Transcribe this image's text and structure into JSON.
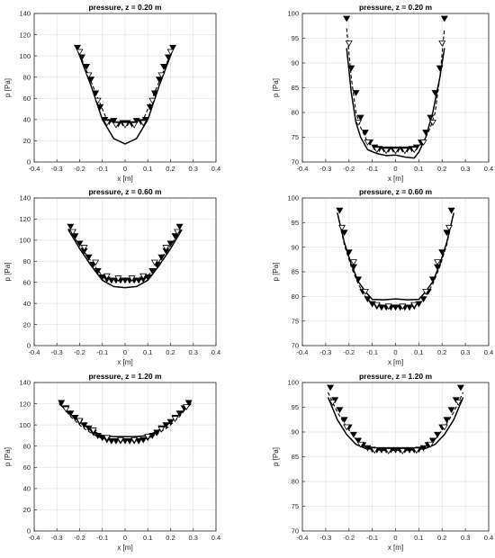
{
  "chart_data": [
    {
      "type": "line",
      "title": "pressure, z = 0.20 m",
      "xlabel": "x [m]",
      "ylabel": "p [Pa]",
      "xlim": [
        -0.4,
        0.4
      ],
      "ylim": [
        0,
        140
      ],
      "xticks": [
        "-0.4",
        "-0.3",
        "-0.2",
        "-0.1",
        "0",
        "0.1",
        "0.2",
        "0.3",
        "0.4"
      ],
      "yticks": [
        "0",
        "20",
        "40",
        "60",
        "80",
        "100",
        "120",
        "140"
      ],
      "grid": true,
      "series": [
        {
          "style": "solid",
          "x": [
            -0.21,
            -0.15,
            -0.1,
            -0.05,
            0,
            0.05,
            0.1,
            0.15,
            0.21
          ],
          "y": [
            106,
            72,
            40,
            22,
            17,
            22,
            40,
            72,
            106
          ]
        },
        {
          "style": "dashed",
          "x": [
            -0.21,
            -0.15,
            -0.1,
            -0.08,
            -0.05,
            0,
            0.05,
            0.08,
            0.1,
            0.15,
            0.21
          ],
          "y": [
            107,
            76,
            50,
            40,
            37,
            37,
            37,
            40,
            50,
            76,
            107
          ]
        },
        {
          "style": "markers-filled",
          "x": [
            -0.21,
            -0.19,
            -0.17,
            -0.15,
            -0.13,
            -0.11,
            -0.09,
            -0.07,
            -0.05,
            -0.03,
            -0.01,
            0.01,
            0.03,
            0.05,
            0.07,
            0.09,
            0.11,
            0.13,
            0.15,
            0.17,
            0.19,
            0.21
          ],
          "y": [
            108,
            99,
            90,
            78,
            65,
            52,
            40,
            38,
            39,
            36,
            37,
            37,
            36,
            39,
            38,
            40,
            52,
            65,
            78,
            90,
            99,
            108
          ]
        },
        {
          "style": "markers-open",
          "x": [
            -0.2,
            -0.16,
            -0.12,
            -0.08,
            -0.04,
            0,
            0.04,
            0.08,
            0.12,
            0.16,
            0.2
          ],
          "y": [
            104,
            82,
            58,
            37,
            35,
            35,
            35,
            37,
            58,
            82,
            104
          ]
        }
      ]
    },
    {
      "type": "line",
      "title": "pressure, z = 0.20 m",
      "xlabel": "x [m]",
      "ylabel": "p [Pa]",
      "xlim": [
        -0.4,
        0.4
      ],
      "ylim": [
        70,
        100
      ],
      "xticks": [
        "-0.4",
        "-0.3",
        "-0.2",
        "-0.1",
        "0",
        "0.1",
        "0.2",
        "0.3",
        "0.4"
      ],
      "yticks": [
        "70",
        "75",
        "80",
        "85",
        "90",
        "95",
        "100"
      ],
      "grid": true,
      "series": [
        {
          "style": "solid",
          "x": [
            -0.21,
            -0.19,
            -0.17,
            -0.15,
            -0.12,
            -0.08,
            -0.04,
            0,
            0.04,
            0.08,
            0.1,
            0.13,
            0.16,
            0.19,
            0.21
          ],
          "y": [
            93,
            84,
            78,
            75,
            72.5,
            71.7,
            71.3,
            71.4,
            71,
            70.8,
            72,
            75,
            80,
            87,
            93
          ]
        },
        {
          "style": "dashed",
          "x": [
            -0.21,
            -0.19,
            -0.17,
            -0.15,
            -0.12,
            -0.09,
            -0.05,
            0,
            0.05,
            0.09,
            0.12,
            0.15,
            0.17,
            0.19,
            0.21
          ],
          "y": [
            97,
            87,
            80,
            77,
            74,
            73,
            72.7,
            72.7,
            72.7,
            73,
            74,
            77,
            80,
            87,
            97
          ]
        },
        {
          "style": "markers-filled",
          "x": [
            -0.21,
            -0.19,
            -0.17,
            -0.15,
            -0.13,
            -0.11,
            -0.09,
            -0.07,
            -0.05,
            -0.03,
            -0.01,
            0.01,
            0.03,
            0.05,
            0.07,
            0.09,
            0.11,
            0.13,
            0.15,
            0.17,
            0.19,
            0.21
          ],
          "y": [
            99,
            89,
            84,
            79,
            76,
            74,
            73,
            72.7,
            72.6,
            72.6,
            72.6,
            72.6,
            72.6,
            72.6,
            72.7,
            73,
            74,
            76,
            79,
            84,
            89,
            99
          ]
        },
        {
          "style": "markers-open",
          "x": [
            -0.2,
            -0.16,
            -0.12,
            -0.08,
            -0.04,
            0,
            0.04,
            0.08,
            0.12,
            0.16,
            0.2
          ],
          "y": [
            94,
            78,
            74,
            72.5,
            72.3,
            72.3,
            72.3,
            72.5,
            74,
            78,
            94
          ]
        }
      ]
    },
    {
      "type": "line",
      "title": "pressure, z = 0.60 m",
      "xlabel": "x [m]",
      "ylabel": "p [Pa]",
      "xlim": [
        -0.4,
        0.4
      ],
      "ylim": [
        0,
        140
      ],
      "xticks": [
        "-0.4",
        "-0.3",
        "-0.2",
        "-0.1",
        "0",
        "0.1",
        "0.2",
        "0.3",
        "0.4"
      ],
      "yticks": [
        "0",
        "20",
        "40",
        "60",
        "80",
        "100",
        "120",
        "140"
      ],
      "grid": true,
      "series": [
        {
          "style": "solid",
          "x": [
            -0.25,
            -0.2,
            -0.15,
            -0.1,
            -0.05,
            0,
            0.05,
            0.1,
            0.15,
            0.2,
            0.25
          ],
          "y": [
            110,
            92,
            76,
            62,
            56,
            55,
            56,
            62,
            76,
            92,
            110
          ]
        },
        {
          "style": "dashed",
          "x": [
            -0.25,
            -0.2,
            -0.15,
            -0.1,
            -0.05,
            0,
            0.05,
            0.1,
            0.15,
            0.2,
            0.25
          ],
          "y": [
            111,
            95,
            80,
            66,
            63,
            63,
            63,
            66,
            80,
            95,
            111
          ]
        },
        {
          "style": "markers-filled",
          "x": [
            -0.24,
            -0.22,
            -0.2,
            -0.18,
            -0.16,
            -0.14,
            -0.12,
            -0.1,
            -0.08,
            -0.06,
            -0.04,
            -0.02,
            0,
            0.02,
            0.04,
            0.06,
            0.08,
            0.1,
            0.12,
            0.14,
            0.16,
            0.18,
            0.2,
            0.22,
            0.24
          ],
          "y": [
            113,
            104,
            97,
            90,
            84,
            77,
            71,
            65,
            63,
            62,
            62,
            62,
            62,
            62,
            62,
            62,
            63,
            65,
            71,
            77,
            84,
            90,
            97,
            104,
            113
          ]
        },
        {
          "style": "markers-open",
          "x": [
            -0.23,
            -0.18,
            -0.13,
            -0.08,
            -0.03,
            0.03,
            0.08,
            0.13,
            0.18,
            0.23
          ],
          "y": [
            108,
            93,
            79,
            66,
            64,
            64,
            66,
            79,
            93,
            108
          ]
        }
      ]
    },
    {
      "type": "line",
      "title": "pressure, z = 0.60 m",
      "xlabel": "x [m]",
      "ylabel": "p [Pa]",
      "xlim": [
        -0.4,
        0.4
      ],
      "ylim": [
        70,
        100
      ],
      "xticks": [
        "-0.4",
        "-0.3",
        "-0.2",
        "-0.1",
        "0",
        "0.1",
        "0.2",
        "0.3",
        "0.4"
      ],
      "yticks": [
        "70",
        "75",
        "80",
        "85",
        "90",
        "95",
        "100"
      ],
      "grid": true,
      "series": [
        {
          "style": "solid",
          "x": [
            -0.25,
            -0.22,
            -0.19,
            -0.16,
            -0.13,
            -0.1,
            -0.05,
            0,
            0.05,
            0.1,
            0.13,
            0.16,
            0.19,
            0.22,
            0.25
          ],
          "y": [
            97,
            91,
            86.5,
            83,
            81,
            79.4,
            79.3,
            79.5,
            79.3,
            79.4,
            81,
            83,
            86.5,
            91,
            97
          ]
        },
        {
          "style": "dashed",
          "x": [
            -0.25,
            -0.22,
            -0.19,
            -0.16,
            -0.13,
            -0.1,
            -0.05,
            0,
            0.05,
            0.1,
            0.13,
            0.16,
            0.19,
            0.22,
            0.25
          ],
          "y": [
            97,
            90.5,
            86,
            82.5,
            80,
            78.5,
            78,
            78,
            78,
            78.5,
            80,
            82.5,
            86,
            90.5,
            97
          ]
        },
        {
          "style": "markers-filled",
          "x": [
            -0.24,
            -0.22,
            -0.2,
            -0.18,
            -0.16,
            -0.14,
            -0.12,
            -0.1,
            -0.08,
            -0.06,
            -0.04,
            -0.02,
            0,
            0.02,
            0.04,
            0.06,
            0.08,
            0.1,
            0.12,
            0.14,
            0.16,
            0.18,
            0.2,
            0.22,
            0.24
          ],
          "y": [
            97.5,
            93,
            89,
            86,
            83.5,
            81,
            79.5,
            78.5,
            78,
            77.8,
            77.8,
            77.8,
            77.8,
            77.8,
            77.8,
            77.8,
            78,
            78.5,
            79.5,
            81,
            83.5,
            86,
            89,
            93,
            97.5
          ]
        },
        {
          "style": "markers-open",
          "x": [
            -0.23,
            -0.18,
            -0.13,
            -0.08,
            -0.03,
            0.03,
            0.08,
            0.13,
            0.18,
            0.23
          ],
          "y": [
            94,
            87,
            81,
            78.3,
            78,
            78,
            78.3,
            81,
            87,
            94
          ]
        }
      ]
    },
    {
      "type": "line",
      "title": "pressure, z = 1.20 m",
      "xlabel": "x [m]",
      "ylabel": "p [Pa]",
      "xlim": [
        -0.4,
        0.4
      ],
      "ylim": [
        0,
        140
      ],
      "xticks": [
        "-0.4",
        "-0.3",
        "-0.2",
        "-0.1",
        "0",
        "0.1",
        "0.2",
        "0.3",
        "0.4"
      ],
      "yticks": [
        "0",
        "20",
        "40",
        "60",
        "80",
        "100",
        "120",
        "140"
      ],
      "grid": true,
      "series": [
        {
          "style": "solid",
          "x": [
            -0.29,
            -0.24,
            -0.19,
            -0.14,
            -0.1,
            -0.05,
            0,
            0.05,
            0.1,
            0.14,
            0.19,
            0.24,
            0.29
          ],
          "y": [
            120,
            110,
            101,
            94,
            90,
            89,
            89,
            89,
            90,
            94,
            101,
            110,
            120
          ]
        },
        {
          "style": "dashed",
          "x": [
            -0.29,
            -0.24,
            -0.19,
            -0.14,
            -0.1,
            -0.05,
            0,
            0.05,
            0.1,
            0.14,
            0.19,
            0.24,
            0.29
          ],
          "y": [
            121,
            108,
            98,
            91,
            87,
            86,
            86,
            86,
            87,
            91,
            98,
            108,
            121
          ]
        },
        {
          "style": "markers-filled",
          "x": [
            -0.28,
            -0.26,
            -0.24,
            -0.22,
            -0.2,
            -0.18,
            -0.16,
            -0.14,
            -0.12,
            -0.1,
            -0.08,
            -0.06,
            -0.04,
            -0.02,
            0,
            0.02,
            0.04,
            0.06,
            0.08,
            0.1,
            0.12,
            0.14,
            0.16,
            0.18,
            0.2,
            0.22,
            0.24,
            0.26,
            0.28
          ],
          "y": [
            121,
            116,
            111,
            107,
            103,
            100,
            97,
            93,
            90,
            88,
            86,
            85,
            85,
            85,
            85,
            85,
            85,
            85,
            86,
            88,
            90,
            93,
            97,
            100,
            103,
            107,
            111,
            116,
            121
          ]
        },
        {
          "style": "markers-open",
          "x": [
            -0.26,
            -0.2,
            -0.14,
            -0.08,
            -0.02,
            0.04,
            0.1,
            0.16,
            0.22,
            0.27
          ],
          "y": [
            115,
            104,
            95,
            88,
            86,
            86,
            89,
            96,
            106,
            117
          ]
        }
      ]
    },
    {
      "type": "line",
      "title": "pressure, z = 1.20 m",
      "xlabel": "x [m]",
      "ylabel": "p [Pa]",
      "xlim": [
        -0.4,
        0.4
      ],
      "ylim": [
        70,
        100
      ],
      "xticks": [
        "-0.4",
        "-0.3",
        "-0.2",
        "-0.1",
        "0",
        "0.1",
        "0.2",
        "0.3",
        "0.4"
      ],
      "yticks": [
        "70",
        "75",
        "80",
        "85",
        "90",
        "95",
        "100"
      ],
      "grid": true,
      "series": [
        {
          "style": "solid",
          "x": [
            -0.29,
            -0.25,
            -0.21,
            -0.17,
            -0.13,
            -0.1,
            -0.05,
            0,
            0.05,
            0.1,
            0.13,
            0.17,
            0.21,
            0.25,
            0.29
          ],
          "y": [
            97,
            92.5,
            89.5,
            87.5,
            86.7,
            86.5,
            86.3,
            86.3,
            86.3,
            86.5,
            86.7,
            87.5,
            89.5,
            92.5,
            97
          ]
        },
        {
          "style": "dashed",
          "x": [
            -0.29,
            -0.25,
            -0.21,
            -0.17,
            -0.13,
            -0.1,
            -0.05,
            0,
            0.05,
            0.1,
            0.13,
            0.17,
            0.21,
            0.25,
            0.29
          ],
          "y": [
            98,
            94,
            91,
            88.5,
            87,
            86.6,
            86.5,
            86.5,
            86.5,
            86.6,
            87,
            88.5,
            91,
            94,
            98
          ]
        },
        {
          "style": "markers-filled",
          "x": [
            -0.28,
            -0.26,
            -0.24,
            -0.22,
            -0.2,
            -0.18,
            -0.16,
            -0.14,
            -0.12,
            -0.1,
            -0.08,
            -0.06,
            -0.04,
            -0.02,
            0,
            0.02,
            0.04,
            0.06,
            0.08,
            0.1,
            0.12,
            0.14,
            0.16,
            0.18,
            0.2,
            0.22,
            0.24,
            0.26,
            0.28
          ],
          "y": [
            99,
            96.5,
            94.5,
            92.5,
            91,
            89.5,
            88.3,
            87.4,
            86.8,
            86.5,
            86.4,
            86.4,
            86.4,
            86.4,
            86.4,
            86.4,
            86.4,
            86.4,
            86.4,
            86.5,
            86.8,
            87.4,
            88.3,
            89.5,
            91,
            92.5,
            94.5,
            96.5,
            99
          ]
        },
        {
          "style": "markers-open",
          "x": [
            -0.27,
            -0.21,
            -0.15,
            -0.09,
            -0.03,
            0.03,
            0.09,
            0.15,
            0.21,
            0.27
          ],
          "y": [
            96,
            91,
            87.5,
            86.3,
            86.2,
            86.2,
            86.3,
            87.5,
            91,
            96
          ]
        }
      ]
    }
  ]
}
